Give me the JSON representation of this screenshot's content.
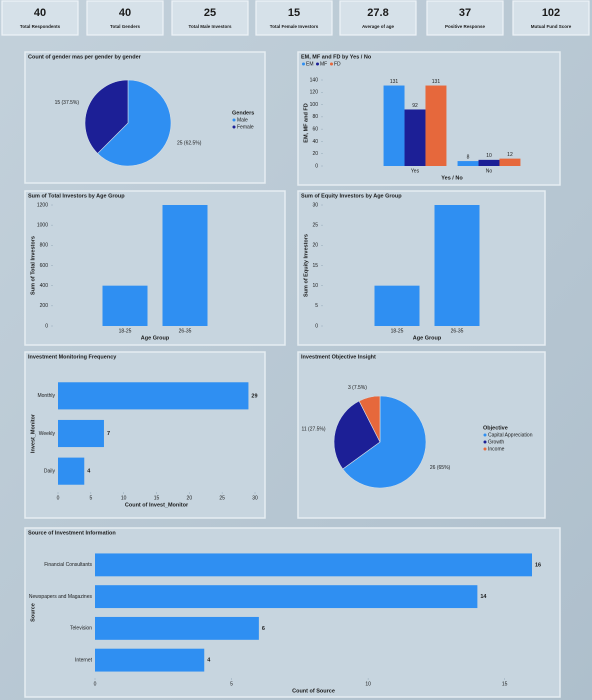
{
  "kpis": [
    {
      "value": "40",
      "label": "Total Respondents"
    },
    {
      "value": "40",
      "label": "Total Genders"
    },
    {
      "value": "25",
      "label": "Total Male Investors"
    },
    {
      "value": "15",
      "label": "Total Female Investors"
    },
    {
      "value": "27.8",
      "label": "Average of age"
    },
    {
      "value": "37",
      "label": "Positive Response"
    },
    {
      "value": "102",
      "label": "Mutual Fund Score"
    }
  ],
  "chart_data": [
    {
      "type": "pie",
      "title": "Count of gender mas per gender by gender",
      "legend_title": "Genders",
      "categories": [
        "Male",
        "Female"
      ],
      "values": [
        25,
        15
      ],
      "value_labels": [
        "25 (62.5%)",
        "15 (37.5%)"
      ],
      "colors": [
        "#2f8ff2",
        "#1c1f96"
      ]
    },
    {
      "type": "bar",
      "title": "EM, MF and FD by Yes / No",
      "x_label": "Yes / No",
      "y_label": "EM, MF and FD",
      "categories": [
        "Yes",
        "No"
      ],
      "series": [
        {
          "name": "EM",
          "color": "#2f8ff2",
          "values": [
            131,
            8
          ]
        },
        {
          "name": "MF",
          "color": "#1c1f96",
          "values": [
            92,
            10
          ]
        },
        {
          "name": "FD",
          "color": "#e6683c",
          "values": [
            131,
            12
          ]
        }
      ],
      "ylim": [
        0,
        140
      ],
      "yticks": [
        0,
        20,
        40,
        60,
        80,
        100,
        120,
        140
      ],
      "data_labels": true
    },
    {
      "type": "bar",
      "title": "Sum of Total Investors by Age Group",
      "x_label": "Age Group",
      "y_label": "Sum of Total Investors",
      "categories": [
        "18-25",
        "26-35"
      ],
      "values": [
        400,
        1200
      ],
      "color": "#2f8ff2",
      "ylim": [
        0,
        1200
      ],
      "yticks": [
        0,
        200,
        400,
        600,
        800,
        1000,
        1200
      ],
      "data_labels": false
    },
    {
      "type": "bar",
      "title": "Sum of Equity Investors by Age Group",
      "x_label": "Age Group",
      "y_label": "Sum of Equity Investors",
      "categories": [
        "18-25",
        "26-35"
      ],
      "values": [
        10,
        30
      ],
      "color": "#2f8ff2",
      "ylim": [
        0,
        30
      ],
      "yticks": [
        0,
        5,
        10,
        15,
        20,
        25,
        30
      ],
      "data_labels": false
    },
    {
      "type": "hbar",
      "title": "Investment Monitoring Frequency",
      "x_label": "Count of Invest_Monitor",
      "y_label": "Invest_Monitor",
      "categories": [
        "Monthly",
        "Weekly",
        "Daily"
      ],
      "values": [
        29,
        7,
        4
      ],
      "color": "#2f8ff2",
      "xlim": [
        0,
        30
      ],
      "xticks": [
        0,
        5,
        10,
        15,
        20,
        25,
        30
      ]
    },
    {
      "type": "pie",
      "title": "Investment Objective Insight",
      "legend_title": "Objective",
      "categories": [
        "Capital Appreciation",
        "Growth",
        "Income"
      ],
      "values": [
        26,
        11,
        3
      ],
      "value_labels": [
        "26 (65%)",
        "11 (27.5%)",
        "3 (7.5%)"
      ],
      "colors": [
        "#2f8ff2",
        "#1c1f96",
        "#e6683c"
      ]
    },
    {
      "type": "hbar",
      "title": "Source of Investment Information",
      "x_label": "Count of Source",
      "y_label": "Source",
      "categories": [
        "Financial Consultants",
        "Newspapers and Magazines",
        "Television",
        "Internet"
      ],
      "values": [
        16,
        14,
        6,
        4
      ],
      "color": "#2f8ff2",
      "xlim": [
        0,
        16
      ],
      "xticks": [
        0,
        5,
        10,
        15
      ]
    }
  ]
}
